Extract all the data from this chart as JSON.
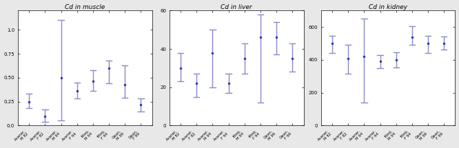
{
  "panels": [
    {
      "title": "Cd in muscle",
      "ylim": [
        0.0,
        1.2
      ],
      "yticks": [
        0.0,
        0.25,
        0.5,
        0.75,
        1.0
      ],
      "ytick_labels": [
        "0.0",
        "0.25",
        "0.50",
        "0.75",
        "1.0"
      ],
      "groups": [
        {
          "x": 1,
          "mean": 0.25,
          "se_low": 0.18,
          "se_high": 0.33
        },
        {
          "x": 2,
          "mean": 0.1,
          "se_low": 0.04,
          "se_high": 0.17
        },
        {
          "x": 3,
          "mean": 0.5,
          "se_low": 0.05,
          "se_high": 1.1
        },
        {
          "x": 4,
          "mean": 0.36,
          "se_low": 0.28,
          "se_high": 0.45
        },
        {
          "x": 5,
          "mean": 0.46,
          "se_low": 0.36,
          "se_high": 0.58
        },
        {
          "x": 6,
          "mean": 0.6,
          "se_low": 0.44,
          "se_high": 0.68
        },
        {
          "x": 7,
          "mean": 0.43,
          "se_low": 0.29,
          "se_high": 0.63
        },
        {
          "x": 8,
          "mean": 0.22,
          "se_low": 0.15,
          "se_high": 0.28
        }
      ],
      "xlabels": [
        "Avaner.\nM 82",
        "Avaner.\nF 82",
        "Avaner.\nM 94",
        "Avaner.\nF 94",
        "Ittoq.\nM 94",
        "Ittoq.\nF 94",
        "Qaan.\nM 99",
        "Qaan.\nF 99"
      ]
    },
    {
      "title": "Cd in liver",
      "ylim": [
        0,
        60
      ],
      "yticks": [
        0,
        20,
        40,
        60
      ],
      "ytick_labels": [
        "0",
        "20",
        "40",
        "60"
      ],
      "groups": [
        {
          "x": 1,
          "mean": 30,
          "se_low": 23,
          "se_high": 38
        },
        {
          "x": 2,
          "mean": 22,
          "se_low": 15,
          "se_high": 27
        },
        {
          "x": 3,
          "mean": 38,
          "se_low": 20,
          "se_high": 50
        },
        {
          "x": 4,
          "mean": 22,
          "se_low": 17,
          "se_high": 27
        },
        {
          "x": 5,
          "mean": 35,
          "se_low": 27,
          "se_high": 43
        },
        {
          "x": 6,
          "mean": 46,
          "se_low": 12,
          "se_high": 58
        },
        {
          "x": 7,
          "mean": 46,
          "se_low": 37,
          "se_high": 54
        },
        {
          "x": 8,
          "mean": 35,
          "se_low": 28,
          "se_high": 43
        }
      ],
      "xlabels": [
        "Avaner.\nM 82",
        "Avaner.\nF 82",
        "Avaner.\nM 94",
        "Avaner.\nF 94",
        "Ittoq.\nM 94",
        "Ittoq.\nF 94",
        "Qaan.\nM 99",
        "Qaan.\nF 99"
      ]
    },
    {
      "title": "Cd in kidney",
      "ylim": [
        0,
        700
      ],
      "yticks": [
        0,
        200,
        400,
        600
      ],
      "ytick_labels": [
        "0",
        "200",
        "400",
        "600"
      ],
      "groups": [
        {
          "x": 1,
          "mean": 500,
          "se_low": 440,
          "se_high": 545
        },
        {
          "x": 2,
          "mean": 410,
          "se_low": 315,
          "se_high": 490
        },
        {
          "x": 3,
          "mean": 420,
          "se_low": 140,
          "se_high": 650
        },
        {
          "x": 4,
          "mean": 390,
          "se_low": 350,
          "se_high": 430
        },
        {
          "x": 5,
          "mean": 400,
          "se_low": 355,
          "se_high": 445
        },
        {
          "x": 6,
          "mean": 540,
          "se_low": 490,
          "se_high": 605
        },
        {
          "x": 7,
          "mean": 500,
          "se_low": 440,
          "se_high": 545
        },
        {
          "x": 8,
          "mean": 500,
          "se_low": 462,
          "se_high": 542
        }
      ],
      "xlabels": [
        "Avaner.\nM 82",
        "Avaner.\nF 82",
        "Avaner.\nM 94",
        "Avaner.\nF 94",
        "Ittoq.\nM 94",
        "Ittoq.\nF 94",
        "Qaan.\nM 99",
        "Qaan.\nF 99"
      ]
    }
  ],
  "point_color": "#3333aa",
  "bar_color": "#8888cc",
  "background_color": "#ffffff",
  "fig_background": "#e8e8e8",
  "title_fontsize": 6.5,
  "tick_fontsize": 5,
  "xlabel_fontsize": 4
}
